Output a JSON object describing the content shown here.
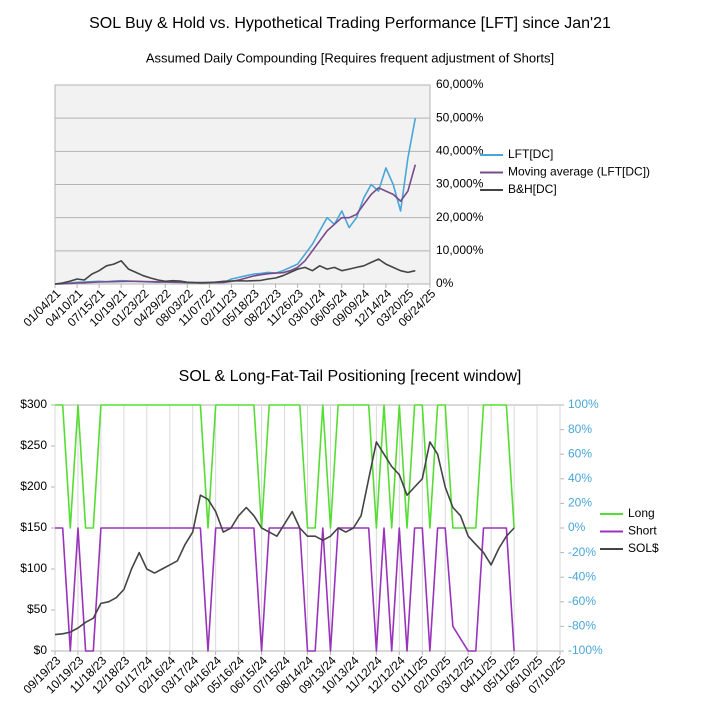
{
  "chart_data": [
    {
      "type": "line",
      "title": "SOL Buy & Hold vs. Hypothetical Trading Performance [LFT] since Jan'21",
      "subtitle": "Assumed Daily Compounding [Requires frequent adjustment of Shorts]",
      "categories": [
        "01/04/21",
        null,
        null,
        "04/10/21",
        null,
        null,
        "07/15/21",
        null,
        null,
        "10/19/21",
        null,
        null,
        "01/23/22",
        null,
        null,
        "04/29/22",
        null,
        null,
        "08/03/22",
        null,
        null,
        "11/07/22",
        null,
        null,
        "02/11/23",
        null,
        null,
        "05/18/23",
        null,
        null,
        "08/22/23",
        null,
        null,
        "11/26/23",
        null,
        null,
        "03/01/24",
        null,
        null,
        "06/05/24",
        null,
        null,
        "09/09/24",
        null,
        null,
        "12/14/24",
        null,
        null,
        "03/20/25",
        null,
        null,
        "06/24/25"
      ],
      "series": [
        {
          "name": "LFT[DC]",
          "color": "#4aa6d8",
          "values": [
            0,
            100,
            300,
            500,
            600,
            700,
            800,
            700,
            900,
            1000,
            900,
            800,
            700,
            600,
            500,
            600,
            500,
            500,
            400,
            400,
            400,
            500,
            500,
            500,
            1500,
            2000,
            2500,
            3000,
            3200,
            3500,
            3300,
            4000,
            5000,
            6000,
            9000,
            12000,
            16000,
            20000,
            18000,
            22000,
            17000,
            20000,
            26000,
            30000,
            28000,
            35000,
            30000,
            22000,
            38000,
            50000,
            null,
            null
          ]
        },
        {
          "name": "Moving average (LFT[DC])",
          "color": "#7a4b8a",
          "values": [
            0,
            50,
            150,
            300,
            400,
            500,
            600,
            650,
            700,
            750,
            800,
            800,
            750,
            700,
            650,
            600,
            550,
            500,
            480,
            450,
            430,
            420,
            420,
            440,
            800,
            1200,
            1800,
            2400,
            2800,
            3100,
            3300,
            3400,
            4000,
            5000,
            7000,
            10000,
            13000,
            16000,
            18000,
            20000,
            20000,
            21000,
            24000,
            27000,
            29000,
            28000,
            27000,
            25000,
            28000,
            36000,
            null,
            null
          ]
        },
        {
          "name": "B&H[DC]",
          "color": "#444444",
          "values": [
            0,
            300,
            800,
            1500,
            1200,
            3000,
            4000,
            5500,
            6000,
            7000,
            4500,
            3500,
            2500,
            1800,
            1200,
            800,
            1000,
            900,
            500,
            400,
            300,
            400,
            600,
            800,
            900,
            1000,
            900,
            1000,
            1100,
            1500,
            1800,
            2500,
            3500,
            4500,
            5000,
            4000,
            5500,
            4500,
            5000,
            4000,
            4500,
            5000,
            5500,
            6500,
            7500,
            6000,
            5000,
            4000,
            3500,
            4000,
            null,
            null
          ]
        }
      ],
      "ylim": [
        0,
        60000
      ],
      "yticks": [
        {
          "value": 0,
          "label": "0%"
        },
        {
          "value": 10000,
          "label": "10,000%"
        },
        {
          "value": 20000,
          "label": "20,000%"
        },
        {
          "value": 30000,
          "label": "30,000%"
        },
        {
          "value": 40000,
          "label": "40,000%"
        },
        {
          "value": 50000,
          "label": "50,000%"
        },
        {
          "value": 60000,
          "label": "60,000%"
        }
      ],
      "grid": true,
      "legend": "right",
      "background": "#f2f2f2"
    },
    {
      "type": "line",
      "title": "SOL & Long-Fat-Tail Positioning [recent window]",
      "categories": [
        "09/19/23",
        null,
        null,
        "10/19/23",
        null,
        null,
        "11/18/23",
        null,
        null,
        "12/18/23",
        null,
        null,
        "01/17/24",
        null,
        null,
        "02/16/24",
        null,
        null,
        "03/17/24",
        null,
        null,
        "04/16/24",
        null,
        null,
        "05/16/24",
        null,
        null,
        "06/15/24",
        null,
        null,
        "07/15/24",
        null,
        null,
        "08/14/24",
        null,
        null,
        "09/13/24",
        null,
        null,
        "10/13/24",
        null,
        null,
        "11/12/24",
        null,
        null,
        "12/12/24",
        null,
        null,
        "01/11/25",
        null,
        null,
        "02/10/25",
        null,
        null,
        "03/12/25",
        null,
        null,
        "04/11/25",
        null,
        null,
        "05/11/25",
        null,
        null,
        "06/10/25",
        null,
        null,
        "07/10/25"
      ],
      "series": [
        {
          "name": "Long",
          "color": "#55dd33",
          "axis": "y2",
          "values": [
            100,
            100,
            0,
            100,
            0,
            0,
            100,
            100,
            100,
            100,
            100,
            100,
            100,
            100,
            100,
            100,
            100,
            100,
            100,
            100,
            0,
            100,
            100,
            100,
            100,
            100,
            100,
            0,
            100,
            100,
            100,
            100,
            100,
            0,
            0,
            100,
            0,
            100,
            100,
            100,
            100,
            100,
            0,
            100,
            0,
            100,
            0,
            100,
            100,
            0,
            100,
            100,
            0,
            0,
            0,
            0,
            100,
            100,
            100,
            100,
            0,
            null,
            null,
            null,
            null,
            null,
            null
          ]
        },
        {
          "name": "Short",
          "color": "#9933bb",
          "axis": "y2",
          "values": [
            0,
            0,
            -100,
            0,
            -100,
            -100,
            0,
            0,
            0,
            0,
            0,
            0,
            0,
            0,
            0,
            0,
            0,
            0,
            0,
            0,
            -100,
            0,
            0,
            0,
            0,
            0,
            0,
            -100,
            0,
            0,
            0,
            0,
            0,
            -100,
            -100,
            0,
            -100,
            0,
            0,
            0,
            0,
            0,
            -100,
            0,
            -100,
            0,
            -100,
            0,
            0,
            -100,
            0,
            0,
            -80,
            -90,
            -100,
            -100,
            0,
            0,
            0,
            0,
            -100,
            null,
            null,
            null,
            null,
            null,
            null
          ]
        },
        {
          "name": "SOL$",
          "color": "#444444",
          "values": [
            20,
            21,
            23,
            28,
            35,
            40,
            58,
            60,
            65,
            75,
            100,
            120,
            100,
            95,
            100,
            105,
            110,
            130,
            145,
            190,
            185,
            170,
            145,
            150,
            165,
            175,
            165,
            150,
            145,
            140,
            155,
            170,
            150,
            140,
            140,
            135,
            140,
            150,
            145,
            150,
            165,
            210,
            255,
            240,
            225,
            215,
            190,
            200,
            210,
            255,
            240,
            200,
            175,
            165,
            140,
            130,
            120,
            105,
            125,
            140,
            150,
            null,
            null,
            null,
            null,
            null,
            null
          ]
        }
      ],
      "ylim": [
        0,
        300
      ],
      "yticks": [
        {
          "value": 0,
          "label": "$0"
        },
        {
          "value": 50,
          "label": "$50"
        },
        {
          "value": 100,
          "label": "$100"
        },
        {
          "value": 150,
          "label": "$150"
        },
        {
          "value": 200,
          "label": "$200"
        },
        {
          "value": 250,
          "label": "$250"
        },
        {
          "value": 300,
          "label": "$300"
        }
      ],
      "y2lim": [
        -100,
        100
      ],
      "y2ticks": [
        {
          "value": -100,
          "label": "-100%"
        },
        {
          "value": -80,
          "label": "-80%"
        },
        {
          "value": -60,
          "label": "-60%"
        },
        {
          "value": -40,
          "label": "-40%"
        },
        {
          "value": -20,
          "label": "-20%"
        },
        {
          "value": 0,
          "label": "0%"
        },
        {
          "value": 20,
          "label": "20%"
        },
        {
          "value": 40,
          "label": "40%"
        },
        {
          "value": 60,
          "label": "60%"
        },
        {
          "value": 80,
          "label": "80%"
        },
        {
          "value": 100,
          "label": "100%"
        }
      ],
      "grid": false,
      "legend": "right",
      "background": "#ffffff"
    }
  ]
}
